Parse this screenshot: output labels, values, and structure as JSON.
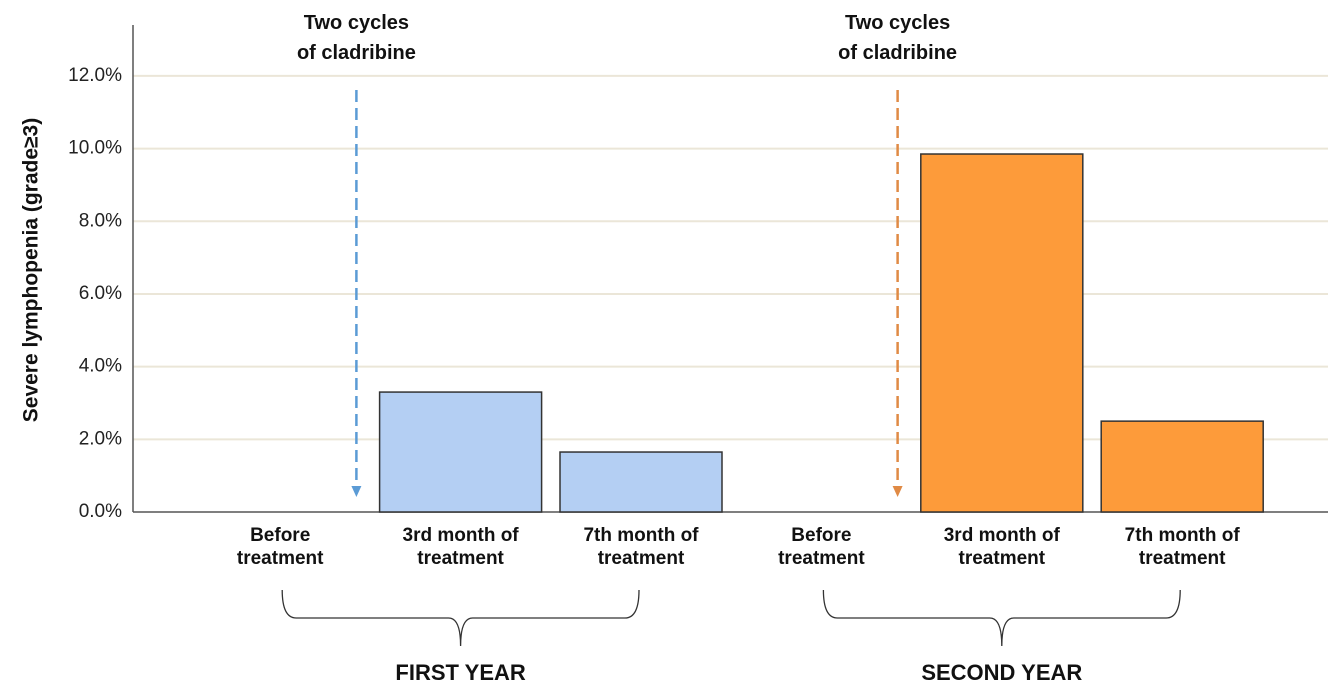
{
  "chart_data": {
    "type": "bar",
    "y_label": "Severe lymphopenia (grade≥3)",
    "categories": [
      "Before\ntreatment",
      "3rd month of\ntreatment",
      "7th month of\ntreatment",
      "Before\ntreatment",
      "3rd month of\ntreatment",
      "7th month of\ntreatment"
    ],
    "values": [
      0,
      3.3,
      1.65,
      0,
      9.85,
      2.5
    ],
    "colors": [
      "#b4cff3",
      "#b4cff3",
      "#b4cff3",
      "#fd9b3a",
      "#fd9b3a",
      "#fd9b3a"
    ],
    "ylim": [
      0,
      13.4
    ],
    "yticks": [
      {
        "value": 0,
        "label": "0.0%"
      },
      {
        "value": 2,
        "label": "2.0%"
      },
      {
        "value": 4,
        "label": "4.0%"
      },
      {
        "value": 6,
        "label": "6.0%"
      },
      {
        "value": 8,
        "label": "8.0%"
      },
      {
        "value": 10,
        "label": "10.0%"
      },
      {
        "value": 12,
        "label": "12.0%"
      }
    ],
    "grid": true,
    "annotations": [
      {
        "text": "Two cycles\nof cladribine",
        "color": "#5b9bd5"
      },
      {
        "text": "Two cycles\nof cladribine",
        "color": "#e08a45"
      }
    ],
    "groups": [
      "FIRST YEAR",
      "SECOND YEAR"
    ]
  }
}
